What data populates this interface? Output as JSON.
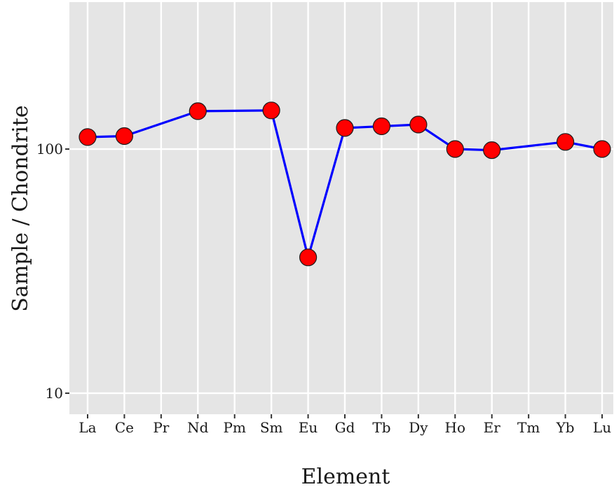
{
  "chart_data": {
    "type": "line",
    "title": "",
    "xlabel": "Element",
    "ylabel": "Sample / Chondrite",
    "y_scale": "log",
    "ylim": [
      8.2,
      400
    ],
    "grid": true,
    "categories": [
      "La",
      "Ce",
      "Pr",
      "Nd",
      "Pm",
      "Sm",
      "Eu",
      "Gd",
      "Tb",
      "Dy",
      "Ho",
      "Er",
      "Tm",
      "Yb",
      "Lu"
    ],
    "y_ticks": [
      10,
      100
    ],
    "y_tick_labels": [
      "10",
      "100"
    ],
    "series": [
      {
        "line_color": "#0000ff",
        "marker_color": "#ff0000",
        "points": [
          {
            "x": "La",
            "y": 112
          },
          {
            "x": "Ce",
            "y": 113
          },
          {
            "x": "Nd",
            "y": 143
          },
          {
            "x": "Sm",
            "y": 144
          },
          {
            "x": "Eu",
            "y": 36
          },
          {
            "x": "Gd",
            "y": 122
          },
          {
            "x": "Tb",
            "y": 124
          },
          {
            "x": "Dy",
            "y": 126
          },
          {
            "x": "Ho",
            "y": 100
          },
          {
            "x": "Er",
            "y": 99
          },
          {
            "x": "Yb",
            "y": 107
          },
          {
            "x": "Lu",
            "y": 100
          }
        ]
      }
    ]
  }
}
